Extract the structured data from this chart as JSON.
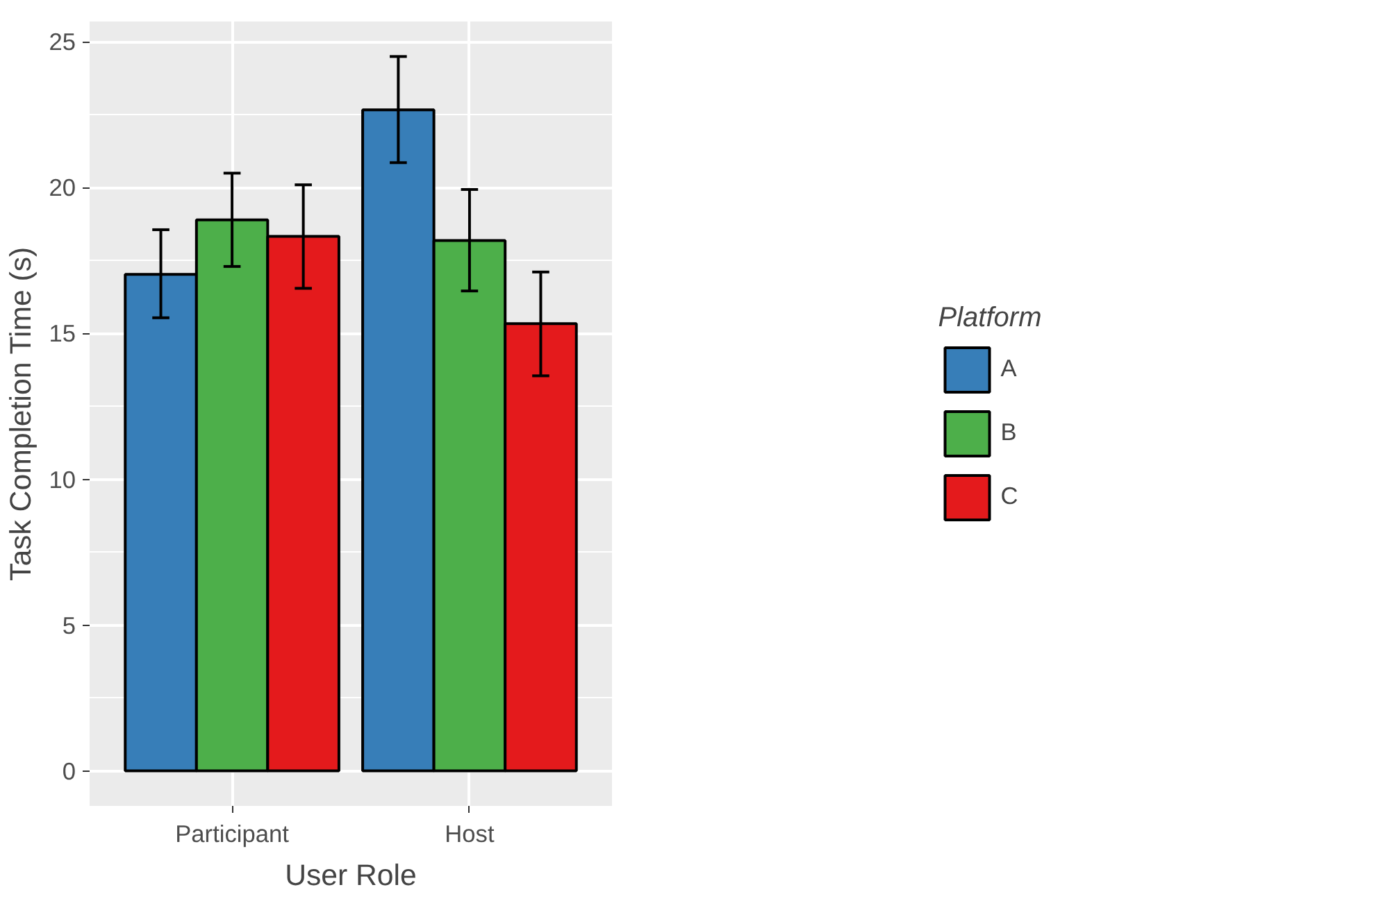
{
  "chart_data": {
    "type": "bar",
    "xlabel": "User Role",
    "ylabel": "Task Completion Time (s)",
    "legend_title": "Platform",
    "categories": [
      "Participant",
      "Host"
    ],
    "series": [
      {
        "name": "A",
        "color": "#377eb8",
        "values": [
          17.03,
          22.67
        ],
        "errors": [
          [
            15.54,
            18.56
          ],
          [
            20.86,
            24.5
          ]
        ]
      },
      {
        "name": "B",
        "color": "#4daf4a",
        "values": [
          18.9,
          18.19
        ],
        "errors": [
          [
            17.3,
            20.5
          ],
          [
            16.46,
            19.94
          ]
        ]
      },
      {
        "name": "C",
        "color": "#e41a1c",
        "values": [
          18.33,
          15.34
        ],
        "errors": [
          [
            16.55,
            20.1
          ],
          [
            13.55,
            17.11
          ]
        ]
      }
    ],
    "ylim": [
      -1.2,
      25.7
    ],
    "yticks": [
      0,
      5,
      10,
      15,
      20,
      25
    ],
    "grid": true,
    "legend": "right"
  }
}
